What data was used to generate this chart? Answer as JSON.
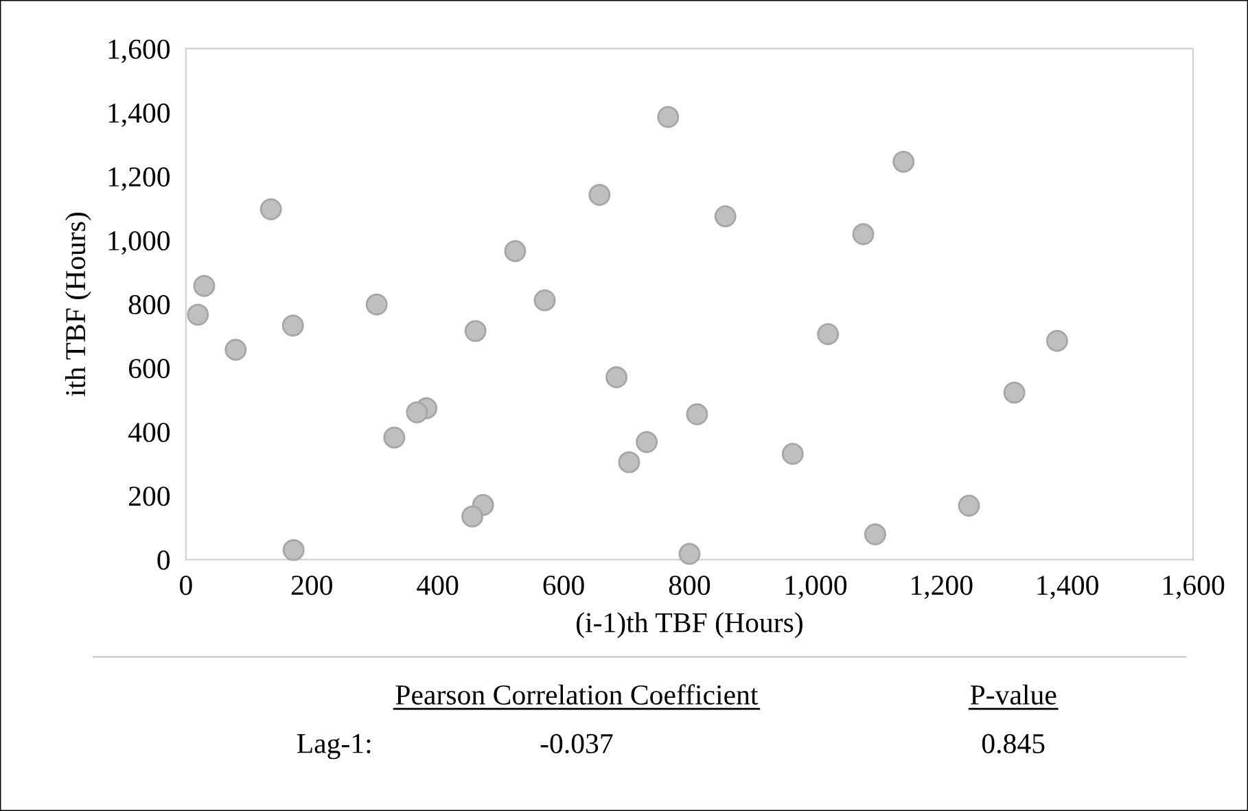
{
  "chart_data": {
    "type": "scatter",
    "xlabel": "(i-1)th TBF (Hours)",
    "ylabel": "ith TBF (Hours)",
    "x": [
      766,
      135,
      657,
      523,
      29,
      19,
      303,
      570,
      170,
      460,
      79,
      684,
      382,
      367,
      331,
      732,
      704,
      472,
      455,
      171,
      1140,
      857,
      1076,
      1020,
      1384,
      1316,
      812,
      964,
      1244,
      1095,
      800
    ],
    "series": [
      {
        "color": "#bfbfbf",
        "values": [
          1386,
          1097,
          1142,
          966,
          857,
          767,
          799,
          812,
          733,
          716,
          657,
          571,
          474,
          461,
          382,
          368,
          305,
          171,
          135,
          30,
          1246,
          1075,
          1019,
          706,
          685,
          523,
          455,
          331,
          169,
          79,
          18
        ]
      }
    ],
    "xlim": [
      0,
      1600
    ],
    "xticks": [
      {
        "value": 0,
        "label": "0"
      },
      {
        "value": 200,
        "label": "200"
      },
      {
        "value": 400,
        "label": "400"
      },
      {
        "value": 600,
        "label": "600"
      },
      {
        "value": 800,
        "label": "800"
      },
      {
        "value": 1000,
        "label": "1,000"
      },
      {
        "value": 1200,
        "label": "1,200"
      },
      {
        "value": 1400,
        "label": "1,400"
      },
      {
        "value": 1600,
        "label": "1,600"
      }
    ],
    "ylim": [
      0,
      1600
    ],
    "yticks": [
      {
        "value": 0,
        "label": "0"
      },
      {
        "value": 200,
        "label": "200"
      },
      {
        "value": 400,
        "label": "400"
      },
      {
        "value": 600,
        "label": "600"
      },
      {
        "value": 800,
        "label": "800"
      },
      {
        "value": 1000,
        "label": "1,000"
      },
      {
        "value": 1200,
        "label": "1,200"
      },
      {
        "value": 1400,
        "label": "1,400"
      },
      {
        "value": 1600,
        "label": "1,600"
      }
    ],
    "grid": false,
    "marker": "circle",
    "annotations": [
      "Pearson Correlation Coefficient",
      "P-value",
      "Lag-1:",
      "-0.037",
      "0.845"
    ]
  }
}
